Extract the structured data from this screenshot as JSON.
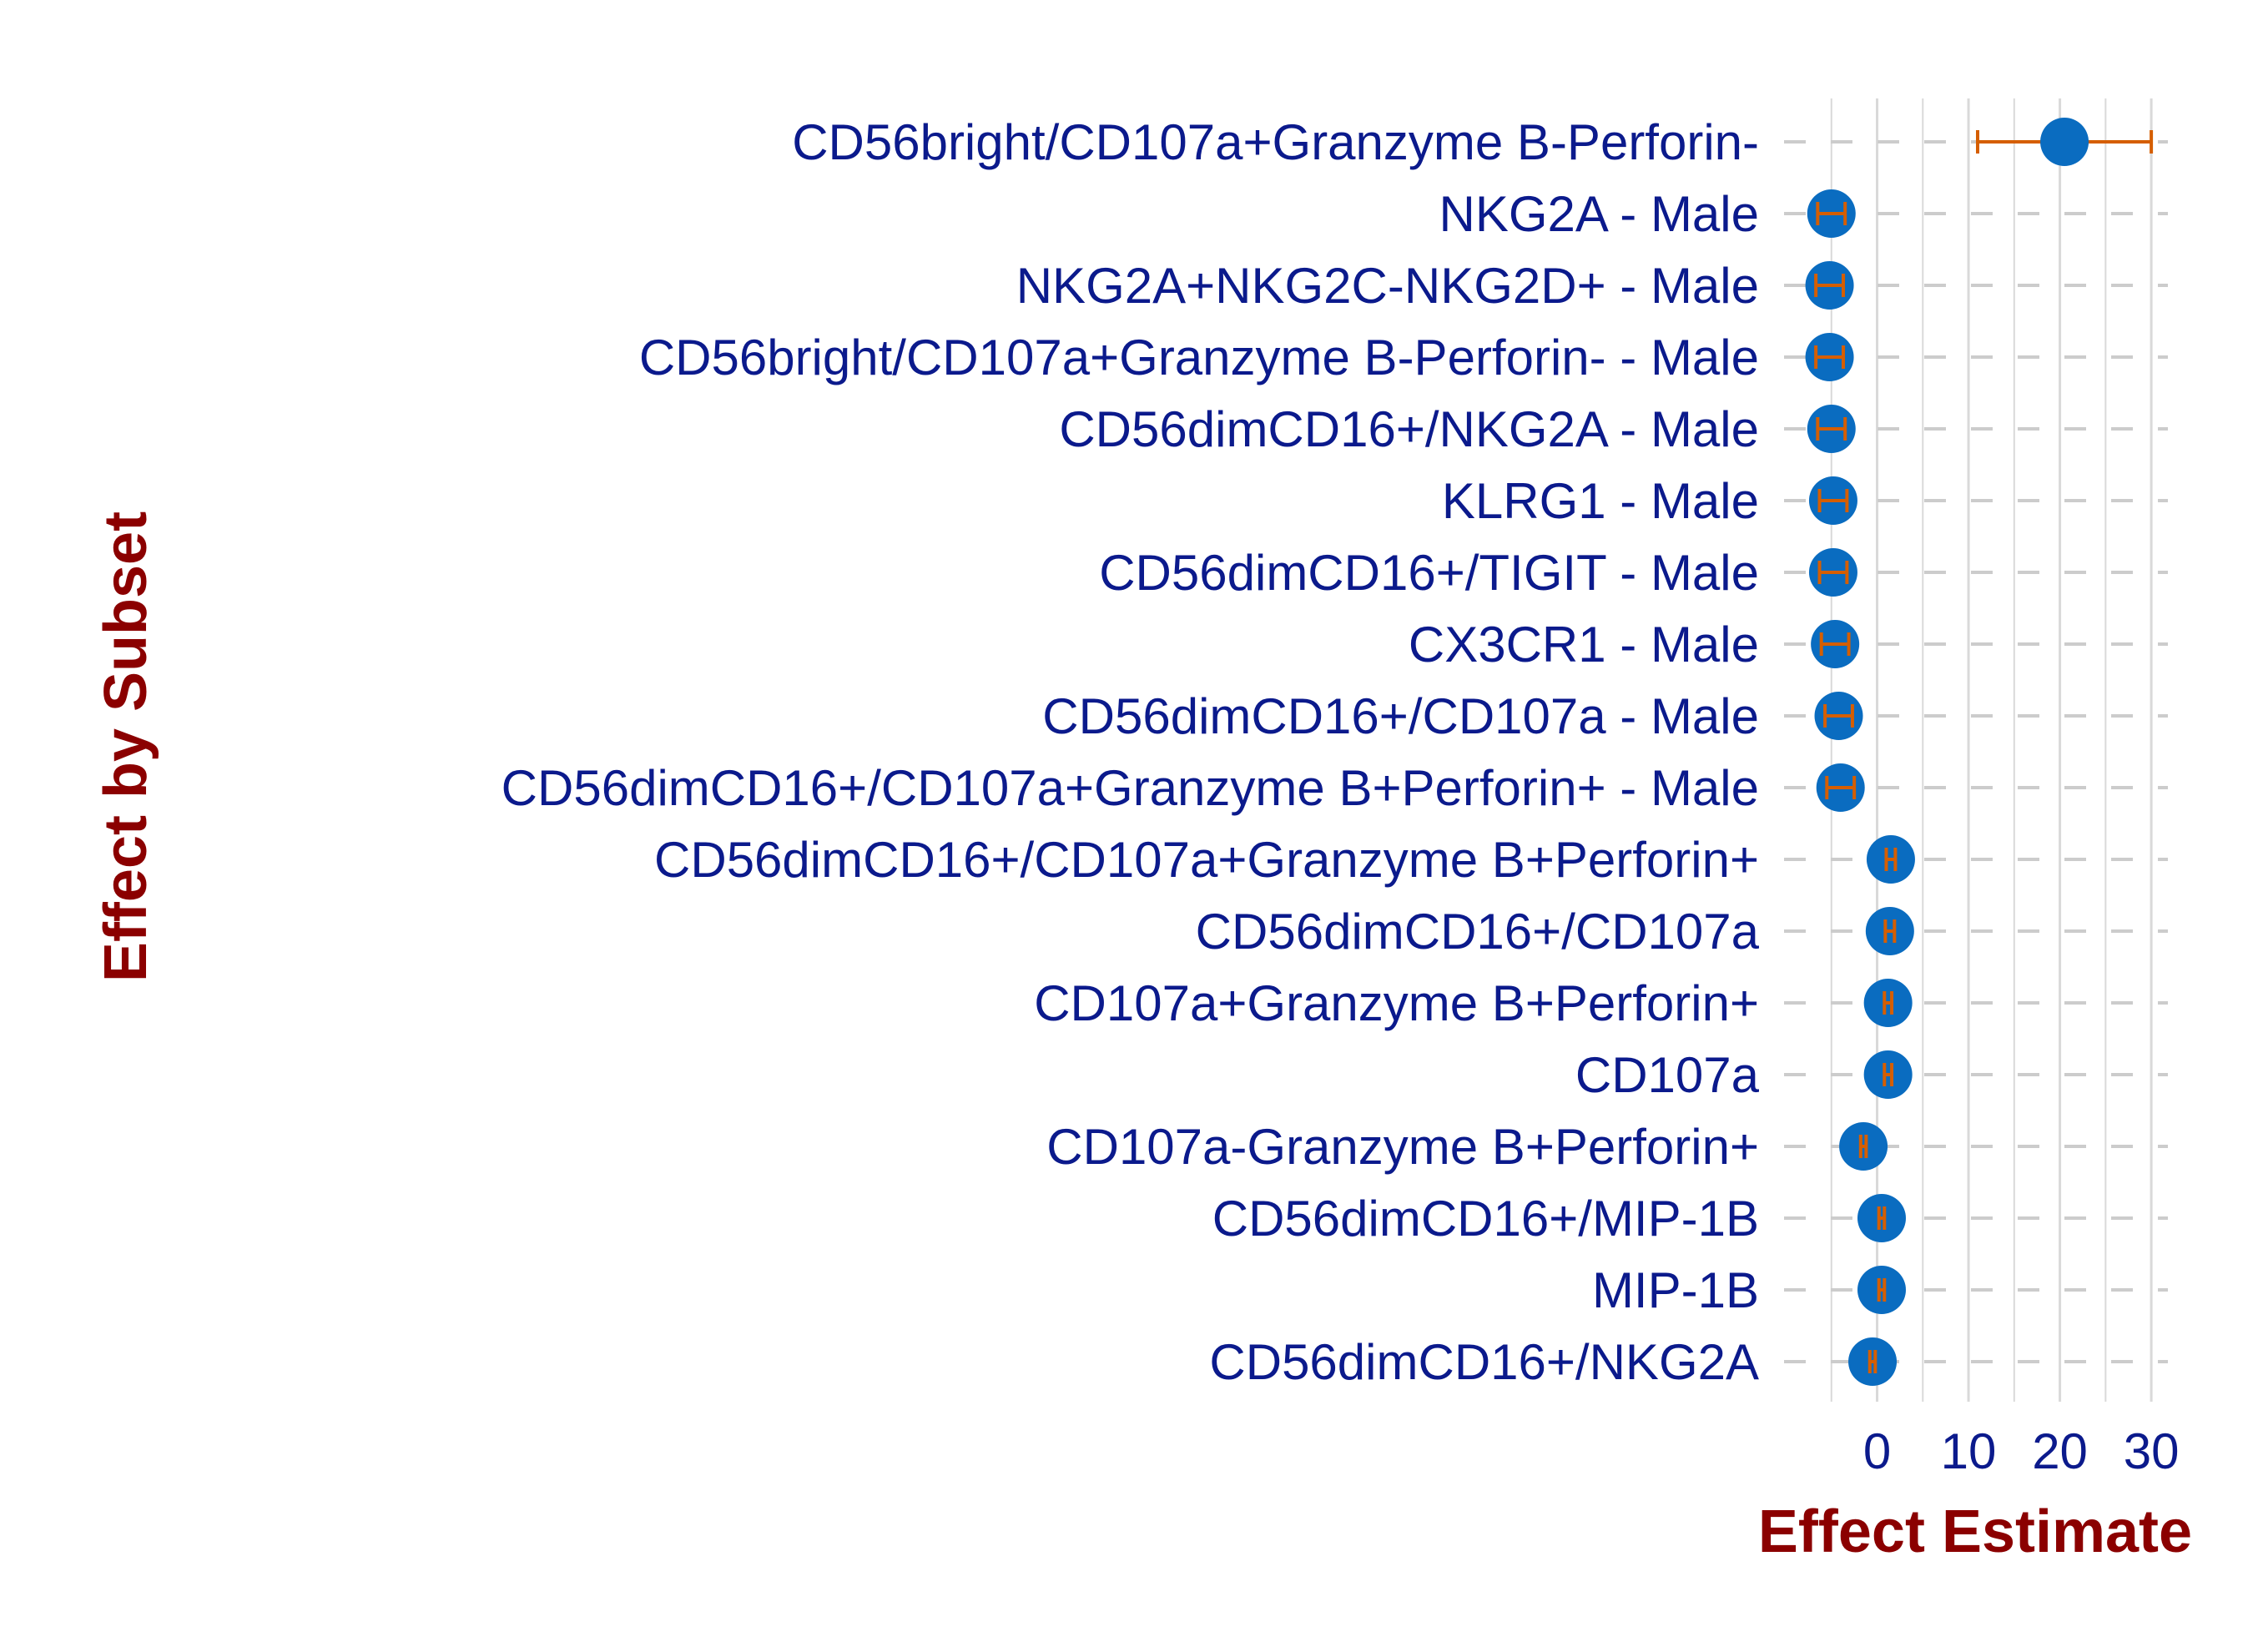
{
  "chart_data": {
    "type": "scatter",
    "title": "",
    "xlabel": "Effect Estimate",
    "ylabel": "Effect by Subset",
    "xlim": [
      -10,
      32
    ],
    "xticks": [
      0,
      10,
      20,
      30
    ],
    "grid": true,
    "legend": "none",
    "colors": {
      "point": "#0a6cc0",
      "errorbar": "#d55e00",
      "label": "#0b1a8c",
      "title": "#8b0000",
      "grid": "#d9d9d9",
      "dash": "#cccccc"
    },
    "categories": [
      "CD56bright/CD107a+Granzyme B-Perforin-",
      "NKG2A - Male",
      "NKG2A+NKG2C-NKG2D+ - Male",
      "CD56bright/CD107a+Granzyme B-Perforin- - Male",
      "CD56dimCD16+/NKG2A - Male",
      "KLRG1 - Male",
      "CD56dimCD16+/TIGIT - Male",
      "CX3CR1 - Male",
      "CD56dimCD16+/CD107a - Male",
      "CD56dimCD16+/CD107a+Granzyme B+Perforin+ - Male",
      "CD56dimCD16+/CD107a+Granzyme B+Perforin+",
      "CD56dimCD16+/CD107a",
      "CD107a+Granzyme B+Perforin+",
      "CD107a",
      "CD107a-Granzyme B+Perforin+",
      "CD56dimCD16+/MIP-1B",
      "MIP-1B",
      "CD56dimCD16+/NKG2A"
    ],
    "estimates": [
      20.5,
      -5.0,
      -5.2,
      -5.2,
      -5.0,
      -4.8,
      -4.8,
      -4.6,
      -4.2,
      -4.0,
      1.5,
      1.4,
      1.2,
      1.2,
      -1.5,
      0.5,
      0.5,
      -0.5
    ],
    "lower": [
      11.0,
      -6.5,
      -6.7,
      -6.7,
      -6.5,
      -6.3,
      -6.3,
      -6.1,
      -5.7,
      -5.5,
      1.0,
      0.9,
      0.8,
      0.8,
      -1.8,
      0.2,
      0.2,
      -0.8
    ],
    "upper": [
      30.0,
      -3.5,
      -3.7,
      -3.7,
      -3.5,
      -3.3,
      -3.3,
      -3.1,
      -2.7,
      -2.5,
      2.0,
      1.9,
      1.6,
      1.6,
      -1.2,
      0.8,
      0.8,
      -0.2
    ]
  }
}
